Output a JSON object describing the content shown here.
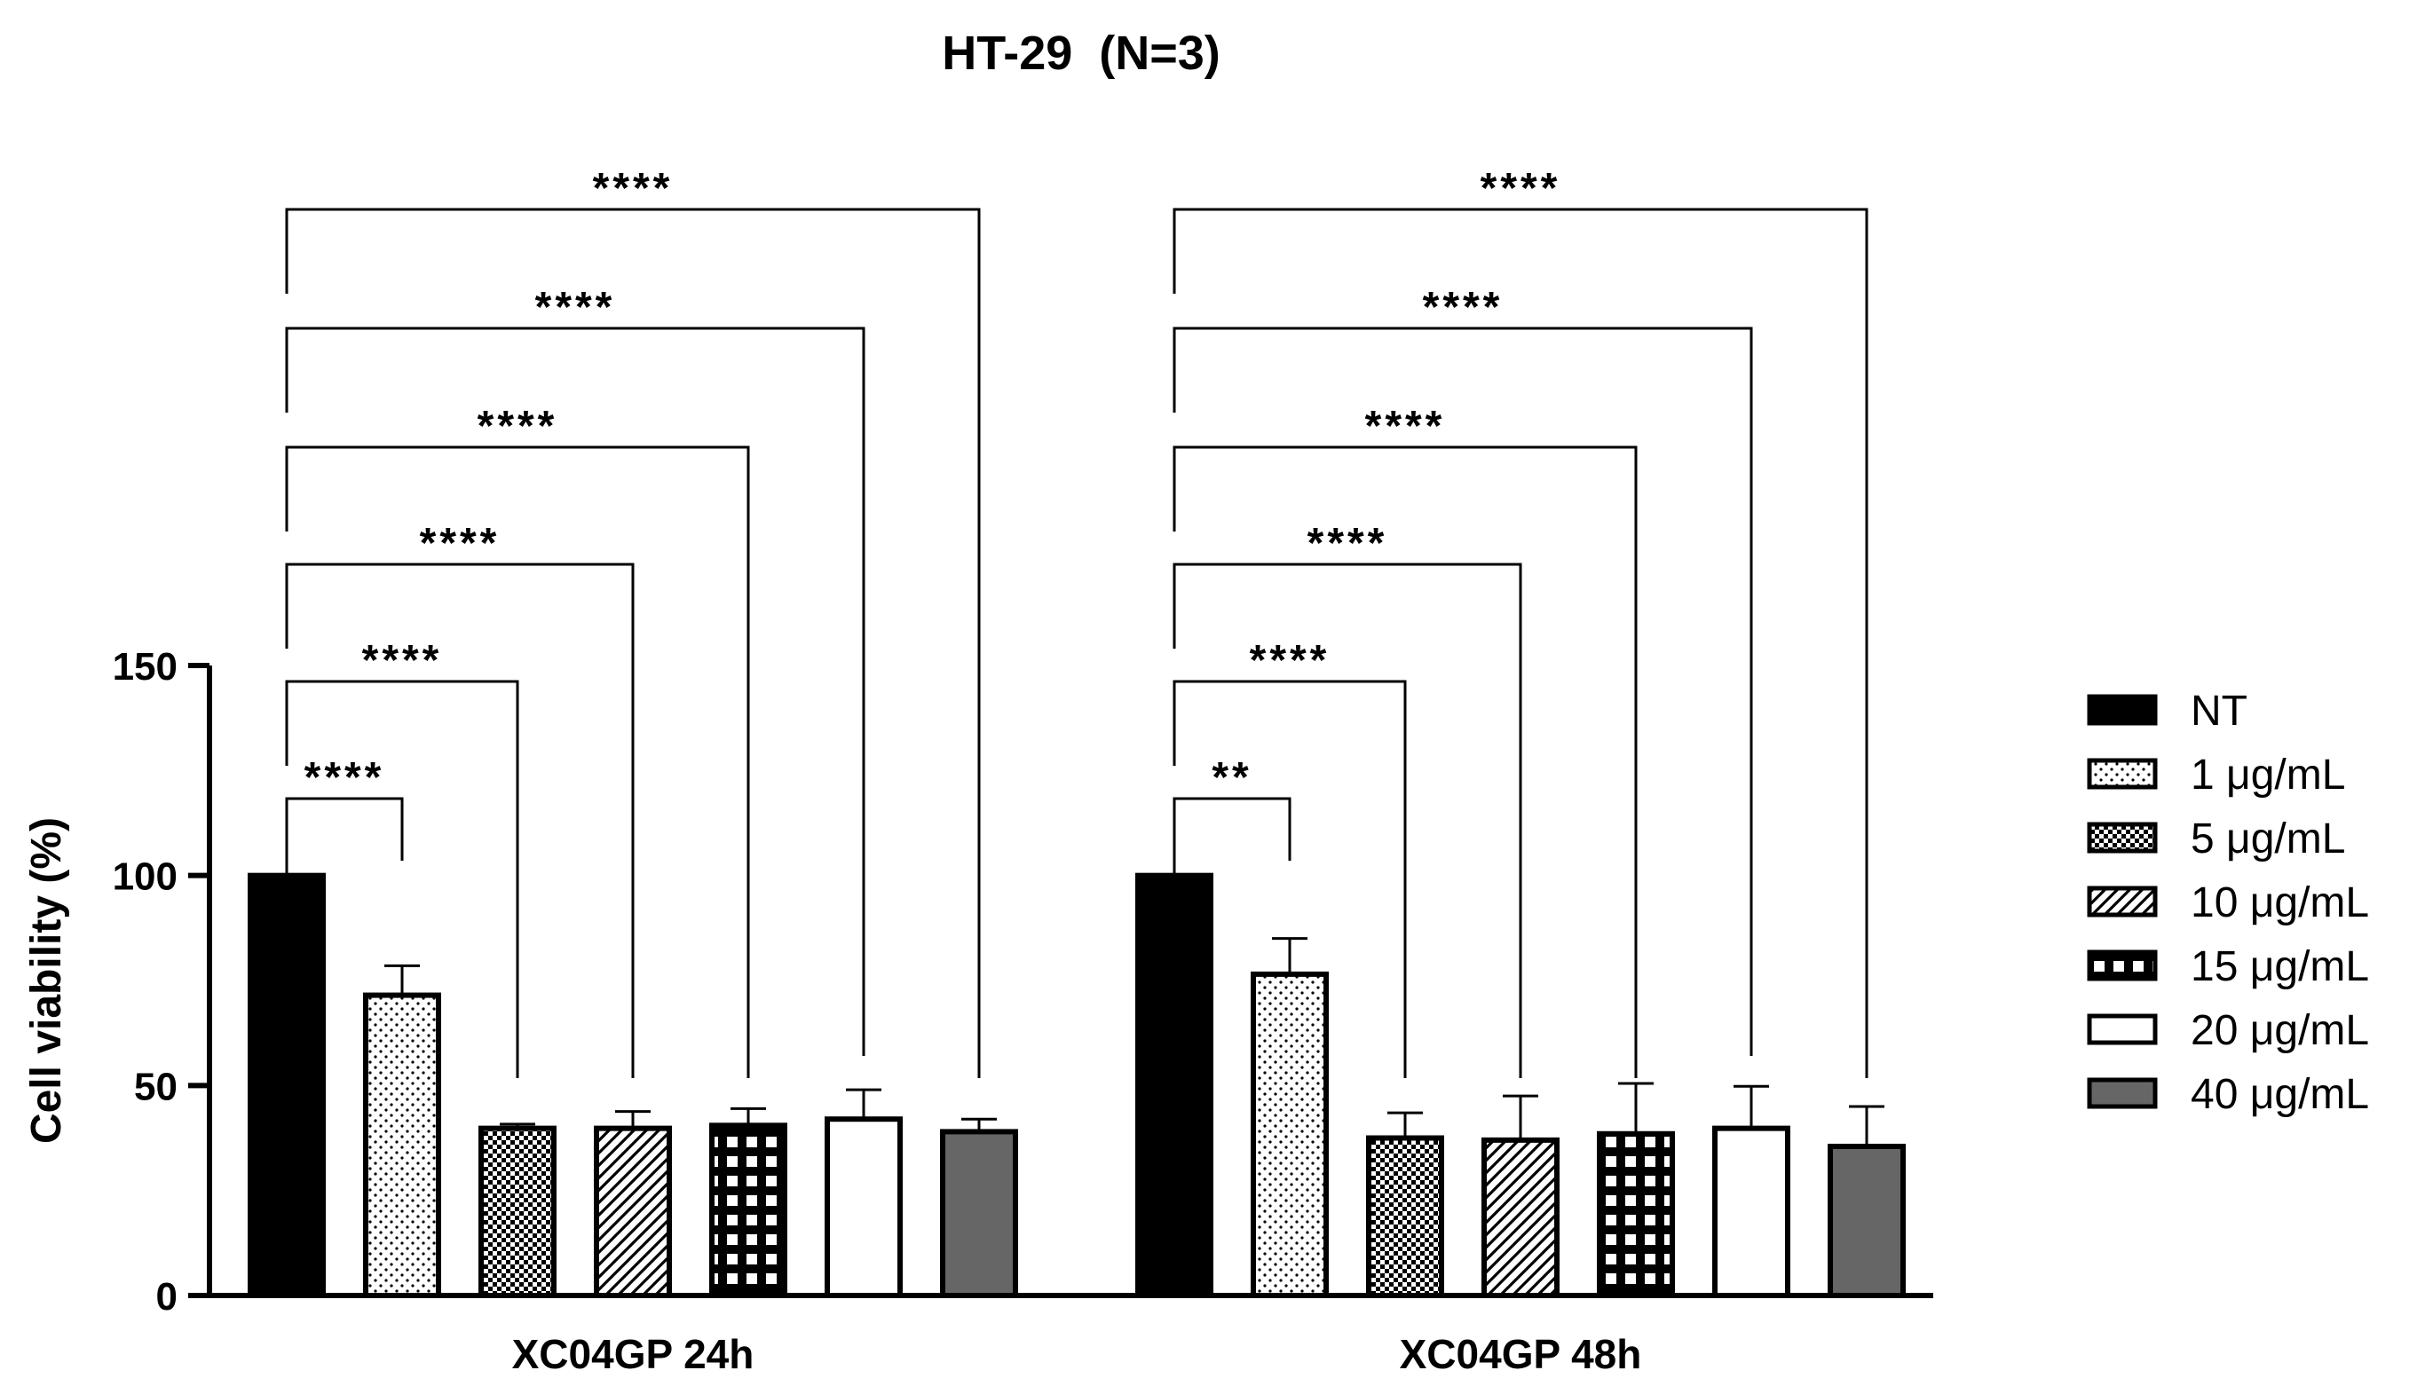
{
  "chart_data": {
    "type": "bar",
    "title": "HT-29  (N=3)",
    "xlabel": "",
    "ylabel": "Cell viability (%)",
    "ylim": [
      0,
      150
    ],
    "yticks": [
      0,
      50,
      100,
      150
    ],
    "categories": [
      "XC04GP 24h",
      "XC04GP 48h"
    ],
    "series": [
      {
        "name": "NT",
        "pattern": "solid",
        "values": [
          100,
          100
        ],
        "errors": [
          0,
          0
        ]
      },
      {
        "name": "1 μg/mL",
        "pattern": "dots",
        "values": [
          71.5,
          76.5
        ],
        "errors": [
          7,
          8.5
        ]
      },
      {
        "name": "5 μg/mL",
        "pattern": "checker",
        "values": [
          39.8,
          37.5
        ],
        "errors": [
          1,
          6
        ]
      },
      {
        "name": "10 μg/mL",
        "pattern": "diagonal",
        "values": [
          39.8,
          37
        ],
        "errors": [
          4,
          10.5
        ]
      },
      {
        "name": "15 μg/mL",
        "pattern": "grid",
        "values": [
          40.5,
          38.5
        ],
        "errors": [
          4,
          12
        ]
      },
      {
        "name": "20 μg/mL",
        "pattern": "empty",
        "values": [
          42,
          39.8
        ],
        "errors": [
          7,
          10
        ]
      },
      {
        "name": "40 μg/mL",
        "pattern": "gray",
        "values": [
          39,
          35.5
        ],
        "errors": [
          3,
          9.5
        ]
      }
    ],
    "significance": [
      {
        "group": "XC04GP 24h",
        "comparisons": [
          {
            "vs": "1 μg/mL",
            "label": "****"
          },
          {
            "vs": "5 μg/mL",
            "label": "****"
          },
          {
            "vs": "10 μg/mL",
            "label": "****"
          },
          {
            "vs": "15 μg/mL",
            "label": "****"
          },
          {
            "vs": "20 μg/mL",
            "label": "****"
          },
          {
            "vs": "40 μg/mL",
            "label": "****"
          }
        ]
      },
      {
        "group": "XC04GP 48h",
        "comparisons": [
          {
            "vs": "1 μg/mL",
            "label": "**"
          },
          {
            "vs": "5 μg/mL",
            "label": "****"
          },
          {
            "vs": "10 μg/mL",
            "label": "****"
          },
          {
            "vs": "15 μg/mL",
            "label": "****"
          },
          {
            "vs": "20 μg/mL",
            "label": "****"
          },
          {
            "vs": "40 μg/mL",
            "label": "****"
          }
        ]
      }
    ],
    "legend_position": "right",
    "colors": {
      "bar_fill": "#000000",
      "gray_fill": "#666666",
      "line": "#000000",
      "background": "#ffffff"
    }
  }
}
